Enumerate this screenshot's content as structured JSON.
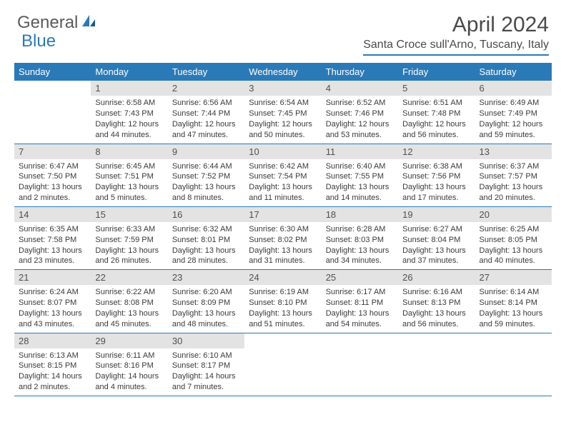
{
  "logo": {
    "general": "General",
    "blue": "Blue"
  },
  "title": "April 2024",
  "location": "Santa Croce sull'Arno, Tuscany, Italy",
  "colors": {
    "accent": "#2a7ab8",
    "header_bg": "#2a7ab8",
    "daynum_bg": "#e3e3e3"
  },
  "day_headers": [
    "Sunday",
    "Monday",
    "Tuesday",
    "Wednesday",
    "Thursday",
    "Friday",
    "Saturday"
  ],
  "weeks": [
    [
      null,
      {
        "n": "1",
        "sr": "Sunrise: 6:58 AM",
        "ss": "Sunset: 7:43 PM",
        "dl": "Daylight: 12 hours and 44 minutes."
      },
      {
        "n": "2",
        "sr": "Sunrise: 6:56 AM",
        "ss": "Sunset: 7:44 PM",
        "dl": "Daylight: 12 hours and 47 minutes."
      },
      {
        "n": "3",
        "sr": "Sunrise: 6:54 AM",
        "ss": "Sunset: 7:45 PM",
        "dl": "Daylight: 12 hours and 50 minutes."
      },
      {
        "n": "4",
        "sr": "Sunrise: 6:52 AM",
        "ss": "Sunset: 7:46 PM",
        "dl": "Daylight: 12 hours and 53 minutes."
      },
      {
        "n": "5",
        "sr": "Sunrise: 6:51 AM",
        "ss": "Sunset: 7:48 PM",
        "dl": "Daylight: 12 hours and 56 minutes."
      },
      {
        "n": "6",
        "sr": "Sunrise: 6:49 AM",
        "ss": "Sunset: 7:49 PM",
        "dl": "Daylight: 12 hours and 59 minutes."
      }
    ],
    [
      {
        "n": "7",
        "sr": "Sunrise: 6:47 AM",
        "ss": "Sunset: 7:50 PM",
        "dl": "Daylight: 13 hours and 2 minutes."
      },
      {
        "n": "8",
        "sr": "Sunrise: 6:45 AM",
        "ss": "Sunset: 7:51 PM",
        "dl": "Daylight: 13 hours and 5 minutes."
      },
      {
        "n": "9",
        "sr": "Sunrise: 6:44 AM",
        "ss": "Sunset: 7:52 PM",
        "dl": "Daylight: 13 hours and 8 minutes."
      },
      {
        "n": "10",
        "sr": "Sunrise: 6:42 AM",
        "ss": "Sunset: 7:54 PM",
        "dl": "Daylight: 13 hours and 11 minutes."
      },
      {
        "n": "11",
        "sr": "Sunrise: 6:40 AM",
        "ss": "Sunset: 7:55 PM",
        "dl": "Daylight: 13 hours and 14 minutes."
      },
      {
        "n": "12",
        "sr": "Sunrise: 6:38 AM",
        "ss": "Sunset: 7:56 PM",
        "dl": "Daylight: 13 hours and 17 minutes."
      },
      {
        "n": "13",
        "sr": "Sunrise: 6:37 AM",
        "ss": "Sunset: 7:57 PM",
        "dl": "Daylight: 13 hours and 20 minutes."
      }
    ],
    [
      {
        "n": "14",
        "sr": "Sunrise: 6:35 AM",
        "ss": "Sunset: 7:58 PM",
        "dl": "Daylight: 13 hours and 23 minutes."
      },
      {
        "n": "15",
        "sr": "Sunrise: 6:33 AM",
        "ss": "Sunset: 7:59 PM",
        "dl": "Daylight: 13 hours and 26 minutes."
      },
      {
        "n": "16",
        "sr": "Sunrise: 6:32 AM",
        "ss": "Sunset: 8:01 PM",
        "dl": "Daylight: 13 hours and 28 minutes."
      },
      {
        "n": "17",
        "sr": "Sunrise: 6:30 AM",
        "ss": "Sunset: 8:02 PM",
        "dl": "Daylight: 13 hours and 31 minutes."
      },
      {
        "n": "18",
        "sr": "Sunrise: 6:28 AM",
        "ss": "Sunset: 8:03 PM",
        "dl": "Daylight: 13 hours and 34 minutes."
      },
      {
        "n": "19",
        "sr": "Sunrise: 6:27 AM",
        "ss": "Sunset: 8:04 PM",
        "dl": "Daylight: 13 hours and 37 minutes."
      },
      {
        "n": "20",
        "sr": "Sunrise: 6:25 AM",
        "ss": "Sunset: 8:05 PM",
        "dl": "Daylight: 13 hours and 40 minutes."
      }
    ],
    [
      {
        "n": "21",
        "sr": "Sunrise: 6:24 AM",
        "ss": "Sunset: 8:07 PM",
        "dl": "Daylight: 13 hours and 43 minutes."
      },
      {
        "n": "22",
        "sr": "Sunrise: 6:22 AM",
        "ss": "Sunset: 8:08 PM",
        "dl": "Daylight: 13 hours and 45 minutes."
      },
      {
        "n": "23",
        "sr": "Sunrise: 6:20 AM",
        "ss": "Sunset: 8:09 PM",
        "dl": "Daylight: 13 hours and 48 minutes."
      },
      {
        "n": "24",
        "sr": "Sunrise: 6:19 AM",
        "ss": "Sunset: 8:10 PM",
        "dl": "Daylight: 13 hours and 51 minutes."
      },
      {
        "n": "25",
        "sr": "Sunrise: 6:17 AM",
        "ss": "Sunset: 8:11 PM",
        "dl": "Daylight: 13 hours and 54 minutes."
      },
      {
        "n": "26",
        "sr": "Sunrise: 6:16 AM",
        "ss": "Sunset: 8:13 PM",
        "dl": "Daylight: 13 hours and 56 minutes."
      },
      {
        "n": "27",
        "sr": "Sunrise: 6:14 AM",
        "ss": "Sunset: 8:14 PM",
        "dl": "Daylight: 13 hours and 59 minutes."
      }
    ],
    [
      {
        "n": "28",
        "sr": "Sunrise: 6:13 AM",
        "ss": "Sunset: 8:15 PM",
        "dl": "Daylight: 14 hours and 2 minutes."
      },
      {
        "n": "29",
        "sr": "Sunrise: 6:11 AM",
        "ss": "Sunset: 8:16 PM",
        "dl": "Daylight: 14 hours and 4 minutes."
      },
      {
        "n": "30",
        "sr": "Sunrise: 6:10 AM",
        "ss": "Sunset: 8:17 PM",
        "dl": "Daylight: 14 hours and 7 minutes."
      },
      null,
      null,
      null,
      null
    ]
  ]
}
